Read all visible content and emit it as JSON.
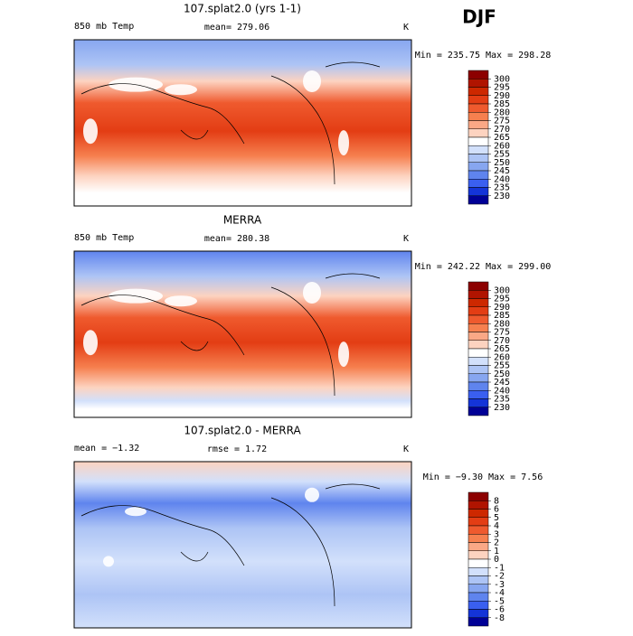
{
  "header": {
    "season": "DJF"
  },
  "panels": [
    {
      "title": "107.splat2.0 (yrs 1-1)",
      "variable": "850 mb Temp",
      "mean_label": "mean= 279.06",
      "units": "K",
      "range_label": "Min = 235.75 Max = 298.28",
      "colorbar": {
        "levels": [
          300,
          295,
          290,
          285,
          280,
          275,
          270,
          265,
          260,
          255,
          250,
          245,
          240,
          235,
          230
        ],
        "colors": [
          "#8c0000",
          "#b01400",
          "#cd2800",
          "#e33d14",
          "#ef5a2e",
          "#f6804f",
          "#faa886",
          "#fdd3c0",
          "#ffffff",
          "#d2e0fb",
          "#adc4f5",
          "#87a6f0",
          "#5f84ee",
          "#3a5ff0",
          "#1434d8",
          "#000096"
        ]
      }
    },
    {
      "title": "MERRA",
      "variable": "850 mb Temp",
      "mean_label": "mean= 280.38",
      "units": "K",
      "range_label": "Min = 242.22 Max = 299.00",
      "colorbar": {
        "levels": [
          300,
          295,
          290,
          285,
          280,
          275,
          270,
          265,
          260,
          255,
          250,
          245,
          240,
          235,
          230
        ],
        "colors": [
          "#8c0000",
          "#b01400",
          "#cd2800",
          "#e33d14",
          "#ef5a2e",
          "#f6804f",
          "#faa886",
          "#fdd3c0",
          "#ffffff",
          "#d2e0fb",
          "#adc4f5",
          "#87a6f0",
          "#5f84ee",
          "#3a5ff0",
          "#1434d8",
          "#000096"
        ]
      }
    },
    {
      "title": "107.splat2.0 - MERRA",
      "variable": "mean =  −1.32",
      "mean_label": "rmse =   1.72",
      "units": "K",
      "range_label": "Min =  −9.30 Max =   7.56",
      "colorbar": {
        "levels": [
          8,
          6,
          5,
          4,
          3,
          2,
          1,
          0,
          -1,
          -2,
          -3,
          -4,
          -5,
          -6,
          -8
        ],
        "colors": [
          "#8c0000",
          "#b01400",
          "#cd2800",
          "#e33d14",
          "#ef5a2e",
          "#f6804f",
          "#faa886",
          "#fdd3c0",
          "#ffffff",
          "#d2e0fb",
          "#adc4f5",
          "#87a6f0",
          "#5f84ee",
          "#3a5ff0",
          "#1434d8",
          "#000096"
        ]
      }
    }
  ]
}
